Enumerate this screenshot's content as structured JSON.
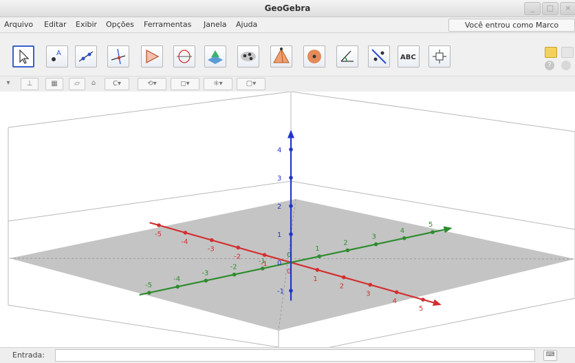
{
  "window": {
    "title": "GeoGebra",
    "min_icon": "_",
    "max_icon": "□",
    "close_icon": "×"
  },
  "menu": {
    "items": [
      "Arquivo",
      "Editar",
      "Exibir",
      "Opções",
      "Ferramentas",
      "Janela",
      "Ajuda"
    ],
    "login_text": "Você entrou como Marco"
  },
  "toolbar": {
    "tools": [
      {
        "name": "move-tool-icon"
      },
      {
        "name": "point-tool-icon"
      },
      {
        "name": "line-tool-icon"
      },
      {
        "name": "perpendicular-tool-icon"
      },
      {
        "name": "polygon-tool-icon"
      },
      {
        "name": "circle-axis-tool-icon"
      },
      {
        "name": "plane-tool-icon"
      },
      {
        "name": "intersect-tool-icon"
      },
      {
        "name": "pyramid-tool-icon"
      },
      {
        "name": "sphere-tool-icon"
      },
      {
        "name": "angle-tool-icon"
      },
      {
        "name": "reflect-tool-icon"
      },
      {
        "name": "text-tool-icon",
        "label": "ABC"
      },
      {
        "name": "rotate-view-tool-icon"
      }
    ],
    "help_icon": "?"
  },
  "accent": "#3a5fcd",
  "axes": {
    "x_color": "#d32f2f",
    "y_color": "#2e8b2e",
    "z_color": "#2233cc",
    "x_labels": [
      "-5",
      "-4",
      "-3",
      "-2",
      "-1",
      "0",
      "1",
      "2",
      "3",
      "4",
      "5"
    ],
    "y_labels": [
      "-5",
      "-4",
      "-3",
      "-2",
      "-1",
      "0",
      "1",
      "2",
      "3",
      "4",
      "5"
    ],
    "z_labels": [
      "-1",
      "0",
      "1",
      "2",
      "3",
      "4"
    ]
  },
  "input": {
    "label": "Entrada:",
    "value": "",
    "keyboard_icon": "⌨"
  }
}
